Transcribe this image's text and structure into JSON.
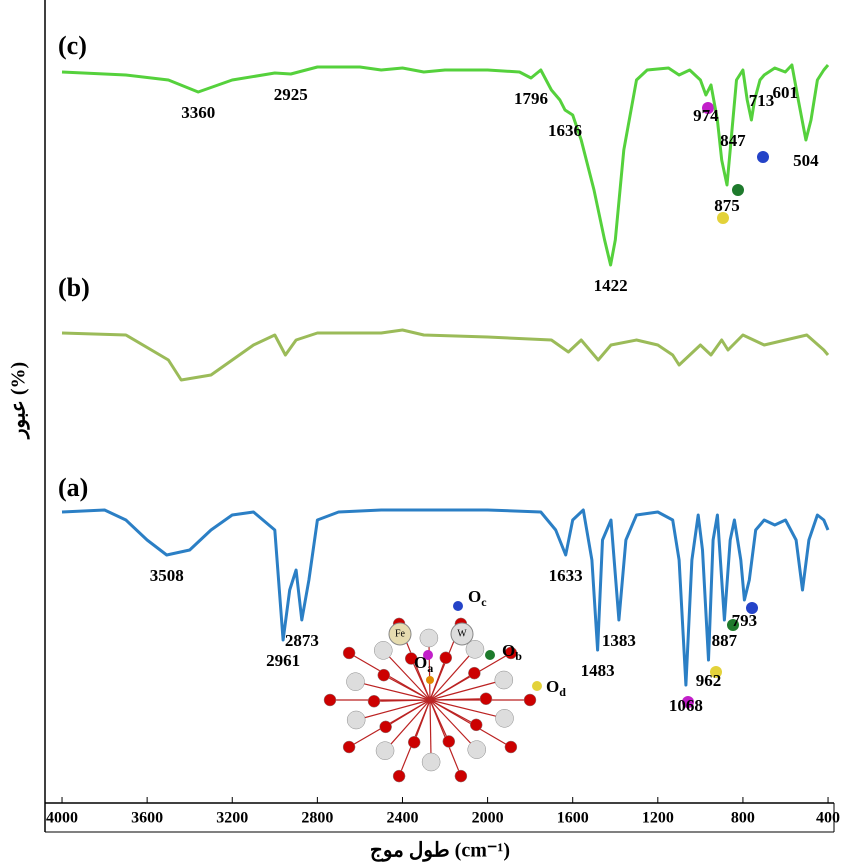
{
  "chart_data": {
    "type": "line",
    "x_label": "طول موج (cm⁻¹)",
    "y_label": "عبور (%)",
    "xlim": [
      4080,
      372
    ],
    "ylim": [
      0,
      802
    ],
    "xticks": [
      4000,
      3600,
      3200,
      2800,
      2400,
      2000,
      1600,
      1200,
      800,
      400
    ],
    "series": [
      {
        "name": "(c)",
        "color": "#55d13c",
        "x": [
          4000,
          3700,
          3500,
          3360,
          3200,
          3000,
          2925,
          2800,
          2600,
          2500,
          2400,
          2300,
          2200,
          2000,
          1850,
          1796,
          1750,
          1700,
          1660,
          1636,
          1600,
          1560,
          1500,
          1450,
          1422,
          1400,
          1360,
          1300,
          1250,
          1150,
          1100,
          1050,
          1000,
          974,
          950,
          920,
          900,
          875,
          860,
          847,
          830,
          800,
          780,
          760,
          745,
          720,
          700,
          650,
          601,
          570,
          540,
          504,
          480,
          450,
          420,
          400
        ],
        "values": [
          730,
          727,
          722,
          710,
          722,
          729,
          728,
          735,
          735,
          732,
          734,
          730,
          732,
          732,
          730,
          724,
          732,
          712,
          702,
          692,
          687,
          662,
          612,
          562,
          537,
          562,
          652,
          722,
          732,
          734,
          727,
          732,
          722,
          707,
          717,
          682,
          642,
          617,
          652,
          682,
          722,
          732,
          702,
          682,
          702,
          722,
          727,
          734,
          730,
          737,
          702,
          662,
          682,
          722,
          732,
          737
        ],
        "peaks": [
          3360,
          2925,
          1796,
          1636,
          1422,
          974,
          875,
          847,
          713,
          601,
          504
        ]
      },
      {
        "name": "(b)",
        "color": "#9bbb59",
        "x": [
          4000,
          3700,
          3500,
          3440,
          3300,
          3100,
          3000,
          2950,
          2900,
          2800,
          2500,
          2400,
          2300,
          2000,
          1700,
          1620,
          1560,
          1480,
          1420,
          1300,
          1200,
          1130,
          1100,
          1000,
          950,
          900,
          870,
          800,
          700,
          600,
          500,
          420,
          400
        ],
        "values": [
          469,
          467,
          442,
          422,
          427,
          457,
          467,
          447,
          462,
          469,
          469,
          472,
          467,
          465,
          462,
          450,
          462,
          442,
          457,
          462,
          457,
          447,
          437,
          457,
          447,
          462,
          452,
          467,
          457,
          462,
          467,
          452,
          447
        ],
        "peaks": []
      },
      {
        "name": "(a)",
        "color": "#2b7fc5",
        "x": [
          4000,
          3800,
          3700,
          3600,
          3508,
          3400,
          3300,
          3200,
          3100,
          3000,
          2961,
          2930,
          2900,
          2873,
          2840,
          2800,
          2700,
          2500,
          2000,
          1750,
          1680,
          1633,
          1600,
          1550,
          1510,
          1483,
          1460,
          1420,
          1383,
          1350,
          1300,
          1200,
          1130,
          1100,
          1068,
          1040,
          1010,
          990,
          962,
          940,
          920,
          887,
          860,
          840,
          810,
          793,
          770,
          740,
          700,
          650,
          600,
          550,
          520,
          490,
          450,
          420,
          400
        ],
        "values": [
          290,
          292,
          282,
          262,
          247,
          252,
          272,
          287,
          290,
          272,
          162,
          212,
          232,
          182,
          222,
          282,
          290,
          292,
          292,
          290,
          272,
          247,
          282,
          292,
          242,
          152,
          262,
          282,
          182,
          262,
          287,
          290,
          282,
          242,
          117,
          242,
          287,
          252,
          142,
          262,
          287,
          182,
          262,
          282,
          242,
          202,
          222,
          272,
          282,
          277,
          282,
          262,
          212,
          262,
          287,
          282,
          272
        ],
        "peaks": [
          3508,
          2961,
          2873,
          1633,
          1483,
          1383,
          1068,
          962,
          887,
          793
        ]
      }
    ]
  },
  "structure": {
    "atoms": [
      "Fe",
      "W"
    ],
    "oxygen_sites": [
      {
        "element": "O",
        "site": "a"
      },
      {
        "element": "O",
        "site": "b"
      },
      {
        "element": "O",
        "site": "c"
      },
      {
        "element": "O",
        "site": "d"
      }
    ]
  }
}
